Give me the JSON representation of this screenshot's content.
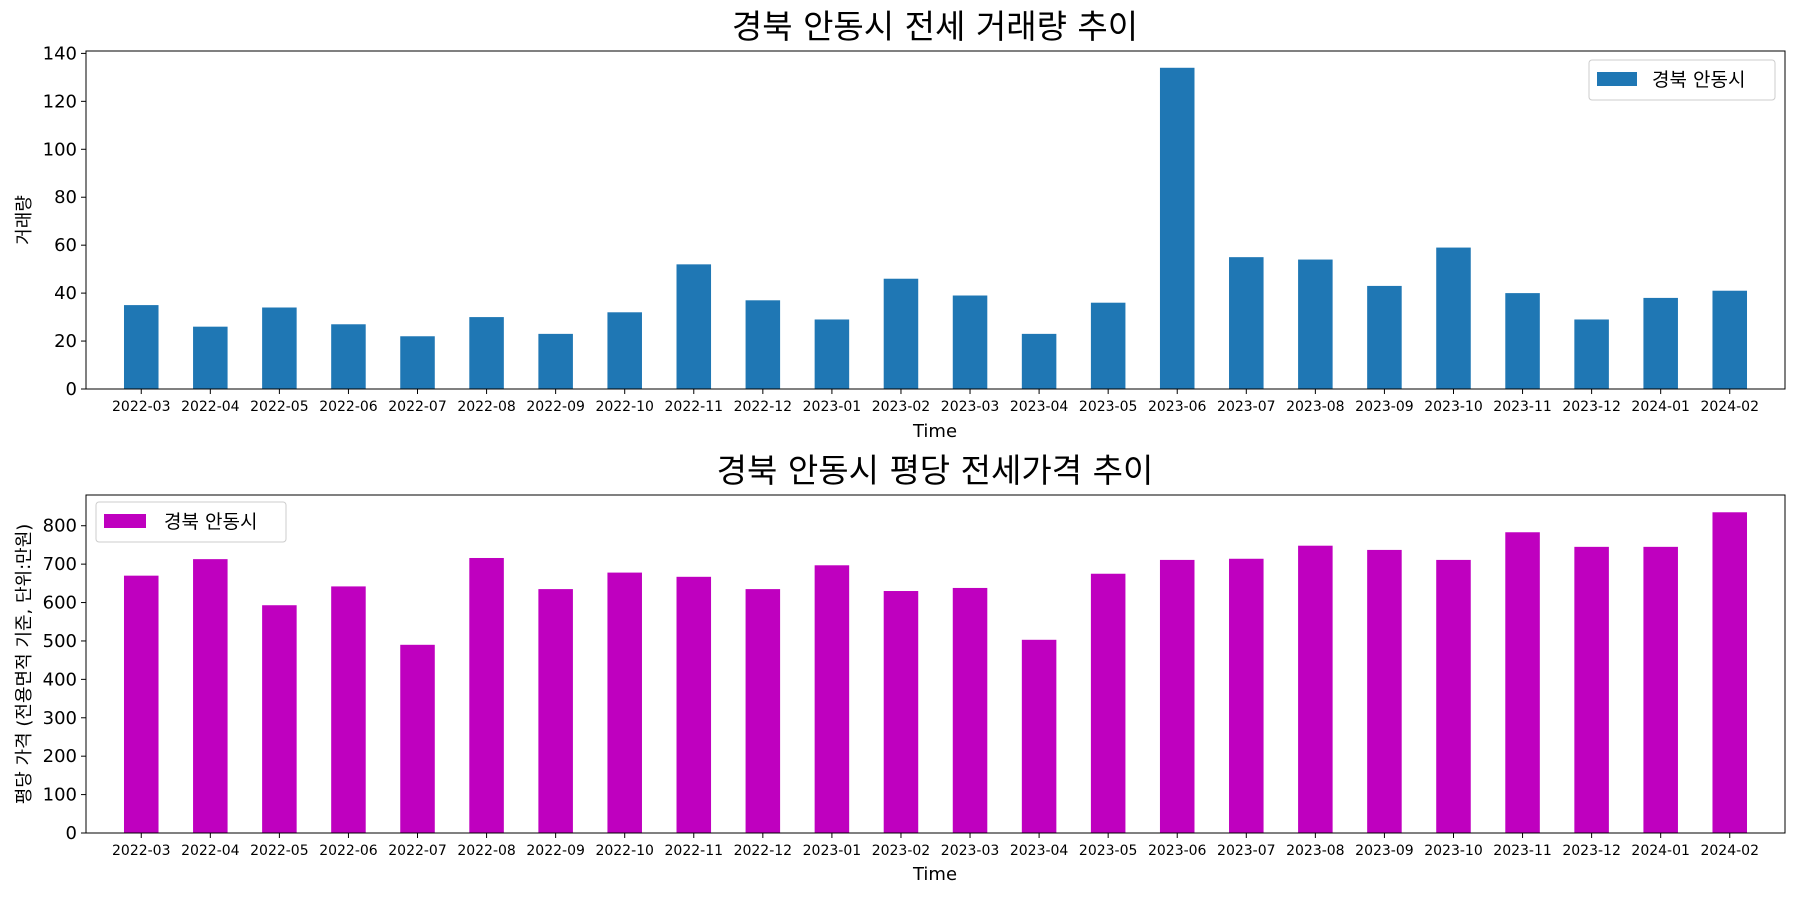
{
  "chart_data": [
    {
      "type": "bar",
      "title": "경북 안동시 전세 거래량 추이",
      "xlabel": "Time",
      "ylabel": "거래량",
      "categories": [
        "2022-03",
        "2022-04",
        "2022-05",
        "2022-06",
        "2022-07",
        "2022-08",
        "2022-09",
        "2022-10",
        "2022-11",
        "2022-12",
        "2023-01",
        "2023-02",
        "2023-03",
        "2023-04",
        "2023-05",
        "2023-06",
        "2023-07",
        "2023-08",
        "2023-09",
        "2023-10",
        "2023-11",
        "2023-12",
        "2024-01",
        "2024-02"
      ],
      "series": [
        {
          "name": "경북 안동시",
          "color": "#1f77b4",
          "values": [
            35,
            26,
            34,
            27,
            22,
            30,
            23,
            32,
            52,
            37,
            29,
            46,
            39,
            23,
            36,
            134,
            55,
            54,
            43,
            59,
            40,
            29,
            38,
            41
          ]
        }
      ],
      "ylim": [
        0,
        141
      ],
      "yticks": [
        0,
        20,
        40,
        60,
        80,
        100,
        120,
        140
      ],
      "legend": "upper-right",
      "grid": false
    },
    {
      "type": "bar",
      "title": "경북 안동시 평당 전세가격 추이",
      "xlabel": "Time",
      "ylabel": "평당 가격 (전용면적 기준, 단위:만원)",
      "categories": [
        "2022-03",
        "2022-04",
        "2022-05",
        "2022-06",
        "2022-07",
        "2022-08",
        "2022-09",
        "2022-10",
        "2022-11",
        "2022-12",
        "2023-01",
        "2023-02",
        "2023-03",
        "2023-04",
        "2023-05",
        "2023-06",
        "2023-07",
        "2023-08",
        "2023-09",
        "2023-10",
        "2023-11",
        "2023-12",
        "2024-01",
        "2024-02"
      ],
      "series": [
        {
          "name": "경북 안동시",
          "color": "#bf00bf",
          "values": [
            670,
            713,
            593,
            642,
            490,
            716,
            635,
            678,
            667,
            635,
            697,
            630,
            638,
            503,
            675,
            711,
            714,
            748,
            737,
            711,
            783,
            745,
            745,
            835
          ]
        }
      ],
      "ylim": [
        0,
        880
      ],
      "yticks": [
        0,
        100,
        200,
        300,
        400,
        500,
        600,
        700,
        800
      ],
      "legend": "upper-left",
      "grid": false
    }
  ]
}
